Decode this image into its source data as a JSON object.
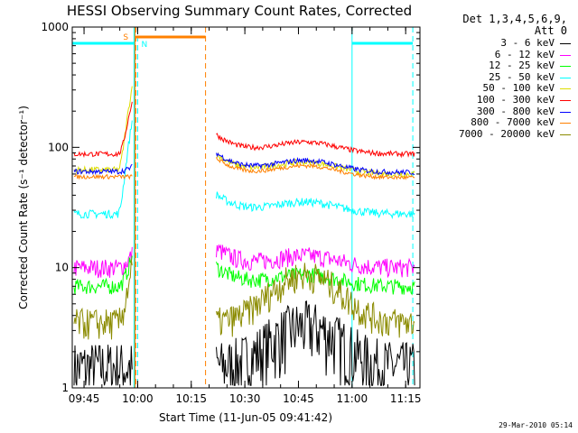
{
  "chart_data": {
    "type": "line",
    "title": "HESSI Observing Summary Count Rates, Corrected",
    "xlabel": "Start Time (11-Jun-05 09:41:42)",
    "ylabel": "Corrected Count Rate (s⁻¹ detector⁻¹)",
    "y_scale": "log",
    "ylim": [
      1,
      1000
    ],
    "x_range_minutes": [
      "09:41:42",
      "11:19:00"
    ],
    "x_ticks": [
      "09:45",
      "10:00",
      "10:15",
      "10:30",
      "10:45",
      "11:00",
      "11:15"
    ],
    "y_ticks": [
      "1",
      "10",
      "100",
      "1000"
    ],
    "legend_header": [
      "Det 1,3,4,5,6,9,",
      "Att 0"
    ],
    "series": [
      {
        "name": "3 - 6 keV",
        "color": "#000000",
        "level_before": 1.5,
        "level_after": 1.5
      },
      {
        "name": "6 - 12 keV",
        "color": "#ff00ff",
        "level_before": 10,
        "level_after": 10
      },
      {
        "name": "12 - 25 keV",
        "color": "#00ff00",
        "level_before": 7,
        "level_after": 7
      },
      {
        "name": "25 - 50 keV",
        "color": "#00ffff",
        "level_before": 28,
        "level_after": 28
      },
      {
        "name": "50 - 100 keV",
        "color": "#dddd00",
        "level_before": 65,
        "level_after": 60
      },
      {
        "name": "100 - 300 keV",
        "color": "#ff0000",
        "level_before": 88,
        "level_after": 88
      },
      {
        "name": "300 - 800 keV",
        "color": "#0000ff",
        "level_before": 63,
        "level_after": 62
      },
      {
        "name": "800 - 7000 keV",
        "color": "#ff8000",
        "level_before": 57,
        "level_after": 56
      },
      {
        "name": "7000 - 20000 keV",
        "color": "#8b8b00",
        "level_before": 3.5,
        "level_after": 3.5
      }
    ],
    "annotations": [
      {
        "text": "S",
        "color": "#ff8000"
      },
      {
        "text": "N",
        "color": "#00ffff"
      }
    ],
    "saa_interval": [
      "09:59:30",
      "10:19:00"
    ],
    "night_intervals": [
      [
        "09:41:42",
        "09:59:00"
      ],
      [
        "11:00:00",
        "11:17:00"
      ]
    ]
  },
  "footer": {
    "timestamp": "29-Mar-2010 05:14"
  }
}
